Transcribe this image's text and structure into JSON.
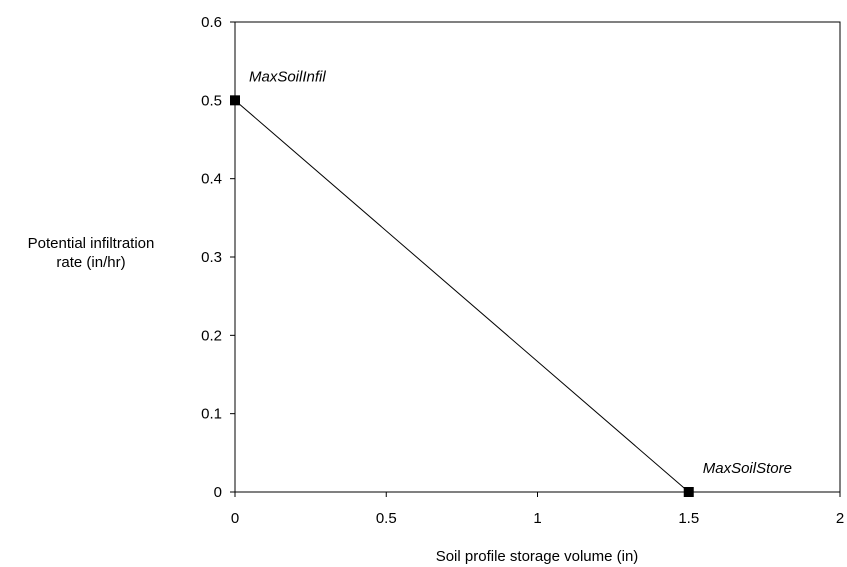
{
  "chart_data": {
    "type": "line",
    "title": "",
    "xlabel": "Soil profile storage volume (in)",
    "ylabel_lines": [
      "Potential infiltration",
      "rate (in/hr)"
    ],
    "xlim": [
      0,
      2
    ],
    "ylim": [
      0,
      0.6
    ],
    "xticks": [
      0,
      0.5,
      1,
      1.5,
      2
    ],
    "xtick_labels": [
      "0",
      "0.5",
      "1",
      "1.5",
      "2"
    ],
    "yticks": [
      0,
      0.1,
      0.2,
      0.3,
      0.4,
      0.5,
      0.6
    ],
    "ytick_labels": [
      "0",
      "0.1",
      "0.2",
      "0.3",
      "0.4",
      "0.5",
      "0.6"
    ],
    "grid": false,
    "legend": "none",
    "series": [
      {
        "x": [
          0,
          1.5
        ],
        "y": [
          0.5,
          0
        ],
        "marker": "square",
        "color": "#000000"
      }
    ],
    "annotations": [
      {
        "text": "MaxSoilInfil",
        "x": 0,
        "y": 0.5
      },
      {
        "text": "MaxSoilStore",
        "x": 1.5,
        "y": 0
      }
    ]
  }
}
